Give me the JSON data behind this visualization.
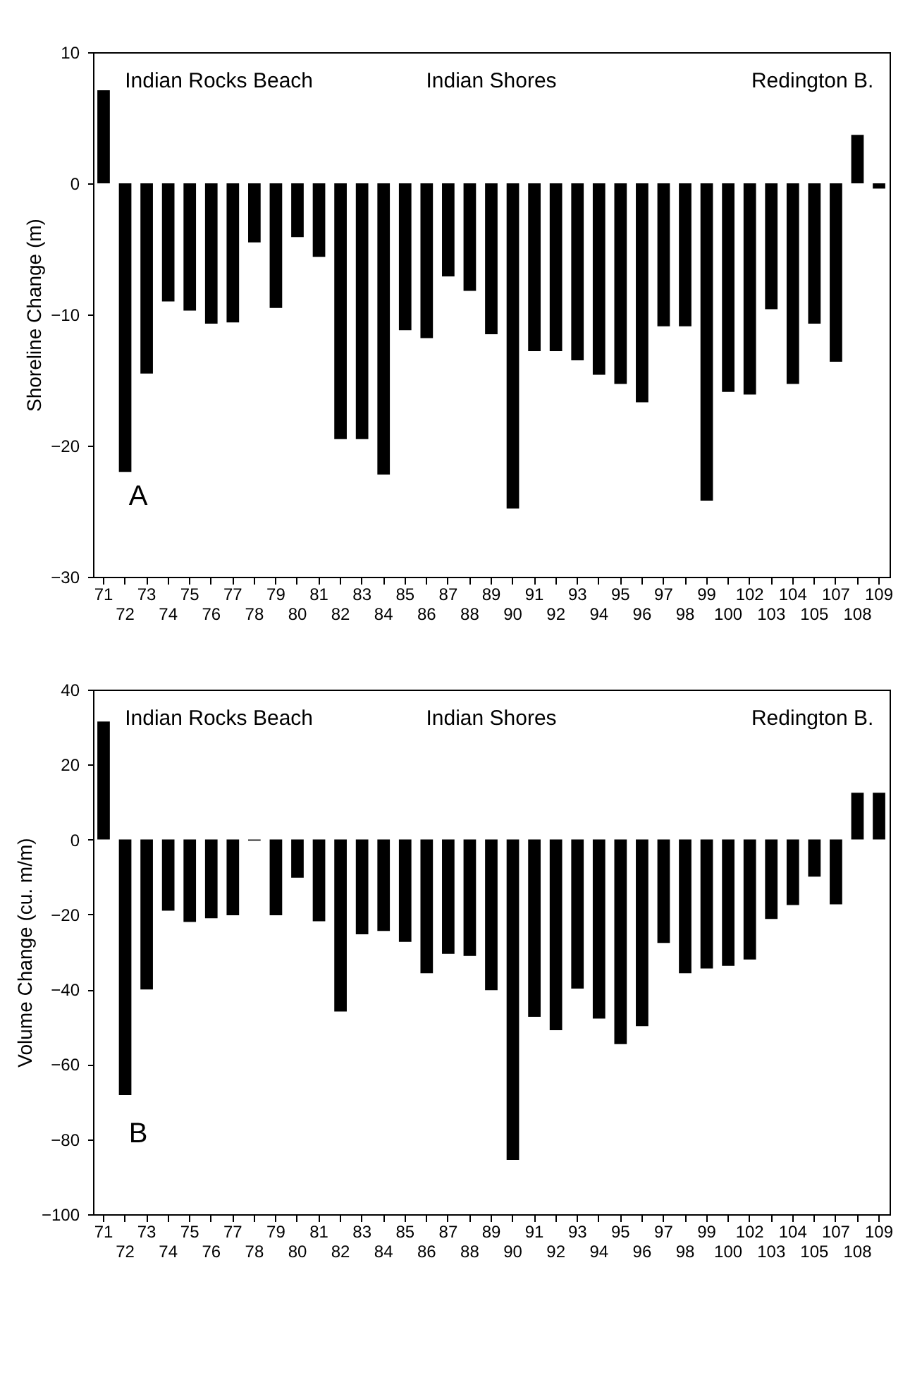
{
  "chart_data": [
    {
      "type": "bar",
      "ylabel": "Shoreline Change (m)",
      "categories": [
        "71",
        "72",
        "73",
        "74",
        "75",
        "76",
        "77",
        "78",
        "79",
        "80",
        "81",
        "82",
        "83",
        "84",
        "85",
        "86",
        "87",
        "88",
        "89",
        "90",
        "91",
        "92",
        "93",
        "94",
        "95",
        "96",
        "97",
        "98",
        "99",
        "100",
        "102",
        "103",
        "104",
        "105",
        "107",
        "108",
        "109"
      ],
      "values": [
        7.1,
        -22.0,
        -14.5,
        -9.0,
        -9.7,
        -10.7,
        -10.6,
        -4.5,
        -9.5,
        -4.1,
        -5.6,
        -19.5,
        -19.5,
        -22.2,
        -11.2,
        -11.8,
        -7.1,
        -8.2,
        -11.5,
        -24.8,
        -12.8,
        -12.8,
        -13.5,
        -14.6,
        -15.3,
        -16.7,
        -10.9,
        -10.9,
        -24.2,
        -15.9,
        -16.1,
        -9.6,
        -15.3,
        -10.7,
        -13.6,
        3.7,
        -0.4
      ],
      "color": "#000000",
      "ylim": [
        -30,
        10
      ],
      "yticks": [
        -30,
        -20,
        -10,
        0,
        10
      ],
      "grid": false,
      "annotations": [
        "Indian Rocks Beach",
        "Indian Shores",
        "Redington B.",
        "A"
      ]
    },
    {
      "type": "bar",
      "ylabel": "Volume Change (cu. m/m)",
      "categories": [
        "71",
        "72",
        "73",
        "74",
        "75",
        "76",
        "77",
        "78",
        "79",
        "80",
        "81",
        "82",
        "83",
        "84",
        "85",
        "86",
        "87",
        "88",
        "89",
        "90",
        "91",
        "92",
        "93",
        "94",
        "95",
        "96",
        "97",
        "98",
        "99",
        "100",
        "102",
        "103",
        "104",
        "105",
        "107",
        "108",
        "109"
      ],
      "values": [
        31.5,
        -68.2,
        -40,
        -19,
        -22,
        -21,
        -20.2,
        -0.3,
        -20.2,
        -10.2,
        -21.8,
        -45.9,
        -25.3,
        -24.4,
        -27.3,
        -35.7,
        -30.5,
        -31.1,
        -40.2,
        -85.5,
        -47.3,
        -50.9,
        -39.8,
        -47.8,
        -54.6,
        -49.8,
        -27.6,
        -35.7,
        -34.4,
        -33.7,
        -32,
        -21.2,
        -17.5,
        -9.9,
        -17.3,
        12.5,
        12.5
      ],
      "color": "#000000",
      "ylim": [
        -100,
        40
      ],
      "yticks": [
        -100,
        -80,
        -60,
        -40,
        -20,
        0,
        20,
        40
      ],
      "grid": false,
      "annotations": [
        "Indian Rocks Beach",
        "Indian Shores",
        "Redington B.",
        "B"
      ]
    }
  ]
}
